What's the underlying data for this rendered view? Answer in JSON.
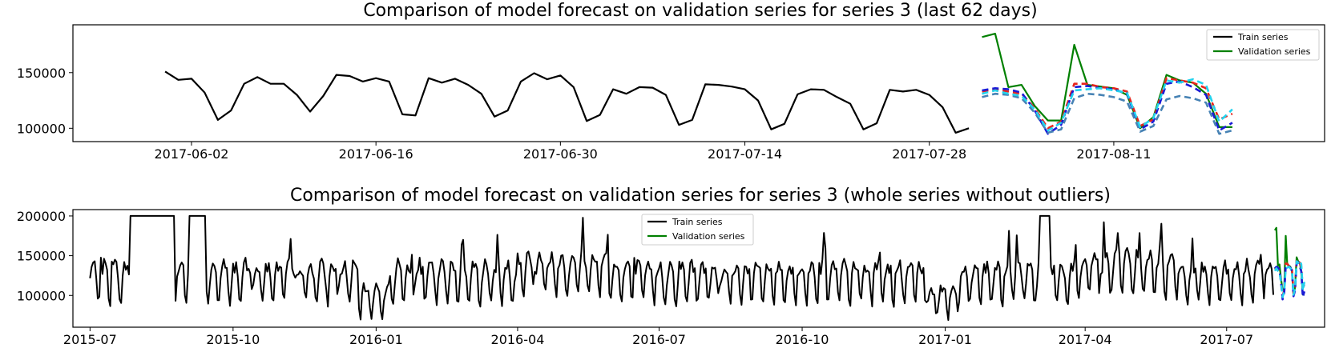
{
  "chart_data": [
    {
      "type": "line",
      "title": "Comparison of model forecast on validation series for series 3 (last 62 days)",
      "xlabel": "",
      "ylabel": "",
      "x_ticks": [
        "2017-06-02",
        "2017-06-16",
        "2017-06-30",
        "2017-07-14",
        "2017-07-28",
        "2017-08-11"
      ],
      "y_ticks": [
        100000,
        150000
      ],
      "ylim": [
        88000,
        193000
      ],
      "xlim": [
        "2017-05-24",
        "2017-08-27"
      ],
      "legend_position": "top-right",
      "grid": false,
      "series": [
        {
          "name": "Train series",
          "color": "#000000",
          "start_date": "2017-05-31",
          "values": [
            151000,
            143500,
            144500,
            132000,
            107500,
            116000,
            140000,
            146000,
            140000,
            140000,
            130000,
            115000,
            129000,
            148000,
            147000,
            142000,
            145000,
            142000,
            112500,
            111500,
            145000,
            141000,
            144500,
            139000,
            131000,
            110500,
            116000,
            142000,
            149500,
            144000,
            147500,
            137000,
            106500,
            112000,
            135000,
            131000,
            137000,
            136500,
            130000,
            103000,
            107500,
            139500,
            139000,
            137500,
            135000,
            125000,
            99000,
            104000,
            130500,
            135000,
            134500,
            128000,
            122000,
            99000,
            104500,
            134500,
            133000,
            134500,
            130000,
            119000,
            96000,
            100000
          ]
        },
        {
          "name": "Validation series",
          "color": "#008000",
          "start_date": "2017-08-01",
          "values": [
            182000,
            185000,
            137000,
            139000,
            120000,
            107000,
            107000,
            175000,
            139000,
            137500,
            136000,
            130000,
            100000,
            110000,
            148000,
            143000,
            141000,
            131000,
            101000,
            101000
          ]
        },
        {
          "name": "",
          "color": "#e8231c",
          "dash": true,
          "start_date": "2017-08-01",
          "values": [
            133000,
            135000,
            133000,
            131000,
            118000,
            100000,
            106000,
            140000,
            140000,
            137000,
            136000,
            133000,
            102000,
            108000,
            145000,
            143000,
            141000,
            136000,
            108000,
            113000
          ]
        },
        {
          "name": "",
          "color": "#1a1ad6",
          "dash": true,
          "start_date": "2017-08-01",
          "values": [
            134000,
            136000,
            135000,
            132000,
            116000,
            95000,
            103000,
            137000,
            138000,
            136000,
            135000,
            131000,
            99000,
            106000,
            140000,
            142000,
            137000,
            130000,
            98000,
            105000
          ]
        },
        {
          "name": "",
          "color": "#4682b4",
          "dash": true,
          "start_date": "2017-08-01",
          "values": [
            128000,
            131000,
            130000,
            127000,
            114000,
            96000,
            99000,
            127000,
            131000,
            130000,
            128000,
            124000,
            97000,
            102000,
            126000,
            129000,
            127000,
            123000,
            95000,
            98000
          ]
        },
        {
          "name": "",
          "color": "#22d3ee",
          "dash": true,
          "start_date": "2017-08-01",
          "values": [
            131000,
            134000,
            131000,
            129000,
            117000,
            98000,
            105000,
            134000,
            135000,
            136000,
            134000,
            132000,
            101000,
            109000,
            143000,
            141000,
            144000,
            139000,
            106000,
            117000
          ]
        }
      ]
    },
    {
      "type": "line",
      "title": "Comparison of model forecast on validation series for series 3 (whole series without outliers)",
      "xlabel": "",
      "ylabel": "",
      "x_ticks": [
        "2015-07",
        "2015-10",
        "2016-01",
        "2016-04",
        "2016-07",
        "2016-10",
        "2017-01",
        "2017-04",
        "2017-07"
      ],
      "y_ticks": [
        100000,
        150000,
        200000
      ],
      "ylim": [
        60000,
        208000
      ],
      "xlim": [
        "2015-06-20",
        "2017-09-02"
      ],
      "legend_position": "top-center",
      "grid": false,
      "series": [
        {
          "name": "Train series",
          "color": "#000000",
          "date_range": [
            "2015-07-01",
            "2017-07-31"
          ],
          "pattern": "weekly",
          "weekly_values": [
            120000,
            135000,
            138000,
            136000,
            130000,
            100000,
            92000
          ],
          "value_range": [
            68000,
            200000
          ],
          "plateaus_at": 200000,
          "plateau_ranges": [
            [
              "2015-07-27",
              "2015-08-24"
            ],
            [
              "2015-09-03",
              "2015-09-13"
            ],
            [
              "2017-03-03",
              "2017-03-09"
            ]
          ]
        },
        {
          "name": "Validation series",
          "color": "#008000",
          "start_date": "2017-08-01",
          "values": [
            182000,
            185000,
            137000,
            139000,
            120000,
            107000,
            107000,
            175000,
            139000,
            137500,
            136000,
            130000,
            100000,
            110000,
            148000,
            143000,
            141000,
            131000,
            101000,
            101000
          ]
        },
        {
          "name": "",
          "color": "#e8231c",
          "dash": true,
          "start_date": "2017-08-01",
          "values": [
            133000,
            135000,
            133000,
            131000,
            118000,
            100000,
            106000,
            140000,
            140000,
            137000,
            136000,
            133000,
            102000,
            108000,
            145000,
            143000,
            141000,
            136000,
            108000,
            113000
          ]
        },
        {
          "name": "",
          "color": "#1a1ad6",
          "dash": true,
          "start_date": "2017-08-01",
          "values": [
            134000,
            136000,
            135000,
            132000,
            116000,
            95000,
            103000,
            137000,
            138000,
            136000,
            135000,
            131000,
            99000,
            106000,
            140000,
            142000,
            137000,
            130000,
            98000,
            105000
          ]
        },
        {
          "name": "",
          "color": "#22d3ee",
          "dash": true,
          "start_date": "2017-08-01",
          "values": [
            131000,
            134000,
            131000,
            129000,
            117000,
            98000,
            105000,
            134000,
            135000,
            136000,
            134000,
            132000,
            101000,
            109000,
            143000,
            141000,
            144000,
            139000,
            106000,
            117000
          ]
        }
      ]
    }
  ]
}
